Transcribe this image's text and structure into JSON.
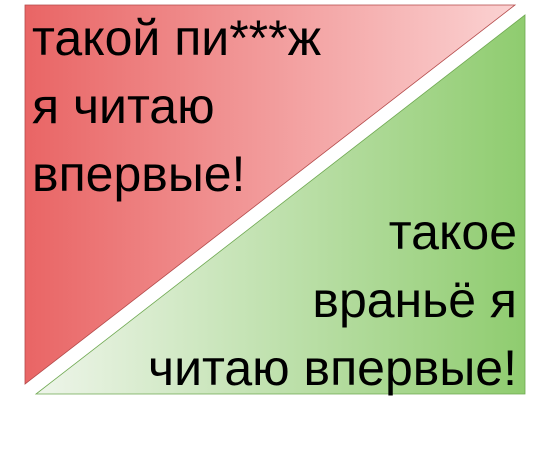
{
  "top_panel": {
    "lines": [
      "такой пи***ж",
      "я читаю",
      "впервые!"
    ],
    "gradient_start": "#e96565",
    "gradient_end": "#fbd2d2",
    "border": "#b44a4a"
  },
  "bottom_panel": {
    "lines": [
      "такое",
      "враньё я",
      "читаю впервые!"
    ],
    "gradient_start": "#eef5ea",
    "gradient_end": "#8fcc6f",
    "border": "#6ea850"
  }
}
